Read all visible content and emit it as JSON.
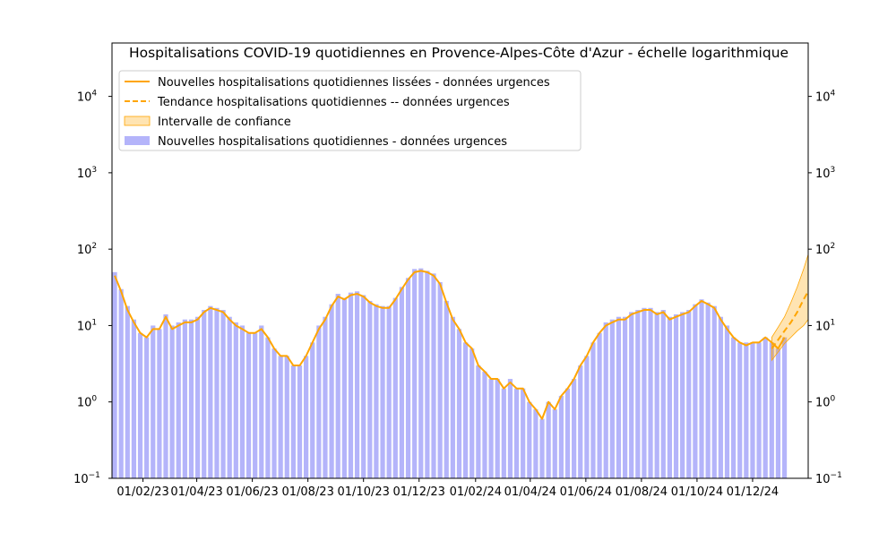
{
  "chart_data": {
    "type": "bar",
    "title": "Hospitalisations COVID-19 quotidiennes en Provence-Alpes-Côte d'Azur - échelle logarithmique",
    "xlabel": "",
    "ylabel": "",
    "yscale": "log",
    "ylim": [
      0.1,
      50000
    ],
    "xlim": [
      "2022-12-29",
      "2025-01-31"
    ],
    "y_ticks": [
      {
        "value": 0.1,
        "base": "10",
        "exp": "−1"
      },
      {
        "value": 1,
        "base": "10",
        "exp": "0"
      },
      {
        "value": 10,
        "base": "10",
        "exp": "1"
      },
      {
        "value": 100,
        "base": "10",
        "exp": "2"
      },
      {
        "value": 1000,
        "base": "10",
        "exp": "3"
      },
      {
        "value": 10000,
        "base": "10",
        "exp": "4"
      }
    ],
    "x_ticks": [
      {
        "date": "2023-02-01",
        "label": "01/02/23"
      },
      {
        "date": "2023-04-01",
        "label": "01/04/23"
      },
      {
        "date": "2023-06-01",
        "label": "01/06/23"
      },
      {
        "date": "2023-08-01",
        "label": "01/08/23"
      },
      {
        "date": "2023-10-01",
        "label": "01/10/23"
      },
      {
        "date": "2023-12-01",
        "label": "01/12/23"
      },
      {
        "date": "2024-02-01",
        "label": "01/02/24"
      },
      {
        "date": "2024-04-01",
        "label": "01/04/24"
      },
      {
        "date": "2024-06-01",
        "label": "01/06/24"
      },
      {
        "date": "2024-08-01",
        "label": "01/08/24"
      },
      {
        "date": "2024-10-01",
        "label": "01/10/24"
      },
      {
        "date": "2024-12-01",
        "label": "01/12/24"
      }
    ],
    "legend_position": "top-left",
    "grid": false,
    "series": [
      {
        "name": "Nouvelles hospitalisations quotidiennes lissées - données urgences",
        "kind": "line",
        "color": "#ffa500",
        "x": [
          "2023-01-01",
          "2023-01-08",
          "2023-01-15",
          "2023-01-22",
          "2023-01-29",
          "2023-02-05",
          "2023-02-12",
          "2023-02-19",
          "2023-02-26",
          "2023-03-05",
          "2023-03-12",
          "2023-03-19",
          "2023-03-26",
          "2023-04-02",
          "2023-04-09",
          "2023-04-16",
          "2023-04-23",
          "2023-04-30",
          "2023-05-07",
          "2023-05-14",
          "2023-05-21",
          "2023-05-28",
          "2023-06-04",
          "2023-06-11",
          "2023-06-18",
          "2023-06-25",
          "2023-07-02",
          "2023-07-09",
          "2023-07-16",
          "2023-07-23",
          "2023-07-30",
          "2023-08-06",
          "2023-08-13",
          "2023-08-20",
          "2023-08-27",
          "2023-09-03",
          "2023-09-10",
          "2023-09-17",
          "2023-09-24",
          "2023-10-01",
          "2023-10-08",
          "2023-10-15",
          "2023-10-22",
          "2023-10-29",
          "2023-11-05",
          "2023-11-12",
          "2023-11-19",
          "2023-11-26",
          "2023-12-03",
          "2023-12-10",
          "2023-12-17",
          "2023-12-24",
          "2023-12-31",
          "2024-01-07",
          "2024-01-14",
          "2024-01-21",
          "2024-01-28",
          "2024-02-04",
          "2024-02-11",
          "2024-02-18",
          "2024-02-25",
          "2024-03-03",
          "2024-03-10",
          "2024-03-17",
          "2024-03-24",
          "2024-03-31",
          "2024-04-07",
          "2024-04-14",
          "2024-04-21",
          "2024-04-28",
          "2024-05-05",
          "2024-05-12",
          "2024-05-19",
          "2024-05-26",
          "2024-06-02",
          "2024-06-09",
          "2024-06-16",
          "2024-06-23",
          "2024-06-30",
          "2024-07-07",
          "2024-07-14",
          "2024-07-21",
          "2024-07-28",
          "2024-08-04",
          "2024-08-11",
          "2024-08-18",
          "2024-08-25",
          "2024-09-01",
          "2024-09-08",
          "2024-09-15",
          "2024-09-22",
          "2024-09-29",
          "2024-10-06",
          "2024-10-13",
          "2024-10-20",
          "2024-10-27",
          "2024-11-03",
          "2024-11-10",
          "2024-11-17",
          "2024-11-24",
          "2024-12-01",
          "2024-12-08",
          "2024-12-15",
          "2024-12-22",
          "2024-12-29",
          "2025-01-05"
        ],
        "y": [
          45,
          28,
          16,
          11,
          8,
          7,
          9,
          9,
          13,
          9,
          10,
          11,
          11,
          12,
          15,
          17,
          16,
          15,
          12,
          10,
          9,
          8,
          8,
          9,
          7,
          5,
          4,
          4,
          3,
          3,
          4,
          6,
          9,
          12,
          18,
          24,
          22,
          25,
          26,
          24,
          20,
          18,
          17,
          17,
          22,
          30,
          40,
          50,
          52,
          50,
          45,
          35,
          20,
          12,
          9,
          6,
          5,
          3,
          2.5,
          2,
          2,
          1.5,
          1.8,
          1.5,
          1.5,
          1,
          0.8,
          0.6,
          1,
          0.8,
          1.2,
          1.5,
          2,
          3,
          4,
          6,
          8,
          10,
          11,
          12,
          12,
          14,
          15,
          16,
          16,
          14,
          15,
          12,
          13,
          14,
          15,
          18,
          21,
          19,
          17,
          12,
          9,
          7,
          6,
          5.5,
          6,
          6,
          7,
          6,
          5,
          7
        ],
        "values": [
          45,
          28,
          16,
          11,
          8,
          7,
          9,
          9,
          13,
          9,
          10,
          11,
          11,
          12,
          15,
          17,
          16,
          15,
          12,
          10,
          9,
          8,
          8,
          9,
          7,
          5,
          4,
          4,
          3,
          3,
          4,
          6,
          9,
          12,
          18,
          24,
          22,
          25,
          26,
          24,
          20,
          18,
          17,
          17,
          22,
          30,
          40,
          50,
          52,
          50,
          45,
          35,
          20,
          12,
          9,
          6,
          5,
          3,
          2.5,
          2,
          2,
          1.5,
          1.8,
          1.5,
          1.5,
          1,
          0.8,
          0.6,
          1,
          0.8,
          1.2,
          1.5,
          2,
          3,
          4,
          6,
          8,
          10,
          11,
          12,
          12,
          14,
          15,
          16,
          16,
          14,
          15,
          12,
          13,
          14,
          15,
          18,
          21,
          19,
          17,
          12,
          9,
          7,
          6,
          5.5,
          6,
          6,
          7,
          6,
          5,
          7
        ]
      },
      {
        "name": "Tendance hospitalisations quotidiennes -- données urgences",
        "kind": "dashed-line",
        "color": "#ffa500",
        "x": [
          "2024-12-22",
          "2024-12-29",
          "2025-01-05",
          "2025-01-12",
          "2025-01-19",
          "2025-01-26",
          "2025-01-31"
        ],
        "y": [
          5,
          6.5,
          8.5,
          11,
          15,
          22,
          28
        ]
      },
      {
        "name": "Intervalle de confiance",
        "kind": "band",
        "color": "#ffa500",
        "x": [
          "2024-12-22",
          "2024-12-29",
          "2025-01-05",
          "2025-01-12",
          "2025-01-19",
          "2025-01-26",
          "2025-01-31"
        ],
        "lower": [
          3.5,
          4.5,
          5.8,
          7,
          8.5,
          10,
          12
        ],
        "upper": [
          7,
          9.5,
          13,
          20,
          32,
          55,
          85
        ]
      },
      {
        "name": "Nouvelles hospitalisations quotidiennes - données urgences",
        "kind": "bars",
        "color": "#b4b4fa",
        "x": [
          "2023-01-01",
          "2023-01-08",
          "2023-01-15",
          "2023-01-22",
          "2023-01-29",
          "2023-02-05",
          "2023-02-12",
          "2023-02-19",
          "2023-02-26",
          "2023-03-05",
          "2023-03-12",
          "2023-03-19",
          "2023-03-26",
          "2023-04-02",
          "2023-04-09",
          "2023-04-16",
          "2023-04-23",
          "2023-04-30",
          "2023-05-07",
          "2023-05-14",
          "2023-05-21",
          "2023-05-28",
          "2023-06-04",
          "2023-06-11",
          "2023-06-18",
          "2023-06-25",
          "2023-07-02",
          "2023-07-09",
          "2023-07-16",
          "2023-07-23",
          "2023-07-30",
          "2023-08-06",
          "2023-08-13",
          "2023-08-20",
          "2023-08-27",
          "2023-09-03",
          "2023-09-10",
          "2023-09-17",
          "2023-09-24",
          "2023-10-01",
          "2023-10-08",
          "2023-10-15",
          "2023-10-22",
          "2023-10-29",
          "2023-11-05",
          "2023-11-12",
          "2023-11-19",
          "2023-11-26",
          "2023-12-03",
          "2023-12-10",
          "2023-12-17",
          "2023-12-24",
          "2023-12-31",
          "2024-01-07",
          "2024-01-14",
          "2024-01-21",
          "2024-01-28",
          "2024-02-04",
          "2024-02-11",
          "2024-02-18",
          "2024-02-25",
          "2024-03-03",
          "2024-03-10",
          "2024-03-17",
          "2024-03-24",
          "2024-03-31",
          "2024-04-07",
          "2024-04-14",
          "2024-04-21",
          "2024-04-28",
          "2024-05-05",
          "2024-05-12",
          "2024-05-19",
          "2024-05-26",
          "2024-06-02",
          "2024-06-09",
          "2024-06-16",
          "2024-06-23",
          "2024-06-30",
          "2024-07-07",
          "2024-07-14",
          "2024-07-21",
          "2024-07-28",
          "2024-08-04",
          "2024-08-11",
          "2024-08-18",
          "2024-08-25",
          "2024-09-01",
          "2024-09-08",
          "2024-09-15",
          "2024-09-22",
          "2024-09-29",
          "2024-10-06",
          "2024-10-13",
          "2024-10-20",
          "2024-10-27",
          "2024-11-03",
          "2024-11-10",
          "2024-11-17",
          "2024-11-24",
          "2024-12-01",
          "2024-12-08",
          "2024-12-15",
          "2024-12-22",
          "2024-12-29",
          "2025-01-05"
        ],
        "values": [
          50,
          30,
          18,
          12,
          8,
          7,
          10,
          9,
          14,
          10,
          11,
          12,
          12,
          13,
          16,
          18,
          17,
          16,
          13,
          11,
          10,
          8,
          8,
          10,
          7,
          5,
          4,
          4,
          3,
          3,
          4,
          6,
          10,
          13,
          19,
          26,
          23,
          27,
          28,
          25,
          21,
          19,
          18,
          18,
          23,
          32,
          42,
          55,
          56,
          52,
          48,
          37,
          21,
          13,
          9,
          6,
          5,
          3,
          2.5,
          2,
          2,
          1.5,
          2,
          1.5,
          1.5,
          1,
          0.8,
          0.6,
          1,
          0.8,
          1.2,
          1.5,
          2,
          3,
          4,
          6,
          8,
          11,
          12,
          13,
          13,
          15,
          16,
          17,
          17,
          15,
          16,
          13,
          14,
          15,
          16,
          19,
          22,
          20,
          18,
          13,
          10,
          7,
          6,
          6,
          6,
          6,
          7,
          6,
          5,
          7
        ]
      }
    ]
  }
}
